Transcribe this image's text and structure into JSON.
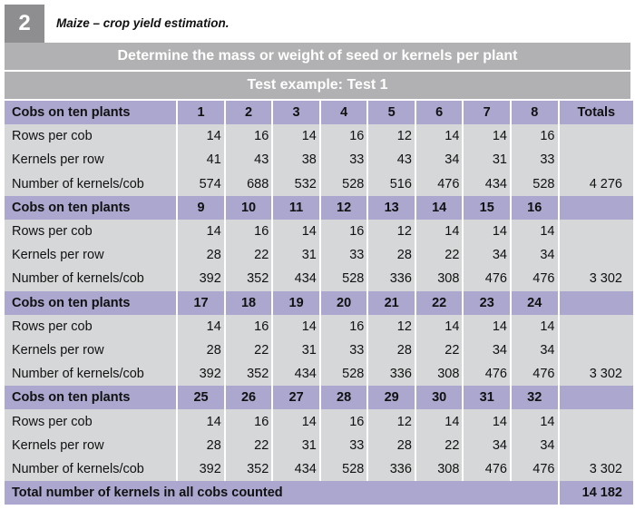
{
  "header": {
    "badge_number": "2",
    "caption": "Maize – crop yield estimation."
  },
  "title_band": "Determine the mass or weight of seed or kernels per plant",
  "subtitle_band": "Test example: Test 1",
  "colors": {
    "header_row": "#aba7cf",
    "body_row": "#d6d7d8",
    "band": "#b1b1b3",
    "badge": "#8e8e90"
  },
  "table": {
    "totals_header": "Totals",
    "groups": [
      {
        "header_label": "Cobs on ten plants",
        "plants": [
          "1",
          "2",
          "3",
          "4",
          "5",
          "6",
          "7",
          "8"
        ],
        "show_totals_label": true,
        "rows": [
          {
            "label": "Rows per cob",
            "values": [
              "14",
              "16",
              "14",
              "16",
              "12",
              "14",
              "14",
              "16"
            ],
            "total": ""
          },
          {
            "label": "Kernels per row",
            "values": [
              "41",
              "43",
              "38",
              "33",
              "43",
              "34",
              "31",
              "33"
            ],
            "total": ""
          },
          {
            "label": "Number of kernels/cob",
            "values": [
              "574",
              "688",
              "532",
              "528",
              "516",
              "476",
              "434",
              "528"
            ],
            "total": "4 276"
          }
        ]
      },
      {
        "header_label": "Cobs on ten plants",
        "plants": [
          "9",
          "10",
          "11",
          "12",
          "13",
          "14",
          "15",
          "16"
        ],
        "show_totals_label": false,
        "rows": [
          {
            "label": "Rows per cob",
            "values": [
              "14",
              "16",
              "14",
              "16",
              "12",
              "14",
              "14",
              "14"
            ],
            "total": ""
          },
          {
            "label": "Kernels per row",
            "values": [
              "28",
              "22",
              "31",
              "33",
              "28",
              "22",
              "34",
              "34"
            ],
            "total": ""
          },
          {
            "label": "Number of kernels/cob",
            "values": [
              "392",
              "352",
              "434",
              "528",
              "336",
              "308",
              "476",
              "476"
            ],
            "total": "3 302"
          }
        ]
      },
      {
        "header_label": "Cobs on ten plants",
        "plants": [
          "17",
          "18",
          "19",
          "20",
          "21",
          "22",
          "23",
          "24"
        ],
        "show_totals_label": false,
        "rows": [
          {
            "label": "Rows per cob",
            "values": [
              "14",
              "16",
              "14",
              "16",
              "12",
              "14",
              "14",
              "14"
            ],
            "total": ""
          },
          {
            "label": "Kernels per row",
            "values": [
              "28",
              "22",
              "31",
              "33",
              "28",
              "22",
              "34",
              "34"
            ],
            "total": ""
          },
          {
            "label": "Number of kernels/cob",
            "values": [
              "392",
              "352",
              "434",
              "528",
              "336",
              "308",
              "476",
              "476"
            ],
            "total": "3 302"
          }
        ]
      },
      {
        "header_label": "Cobs on ten plants",
        "plants": [
          "25",
          "26",
          "27",
          "28",
          "29",
          "30",
          "31",
          "32"
        ],
        "show_totals_label": false,
        "rows": [
          {
            "label": "Rows per cob",
            "values": [
              "14",
              "16",
              "14",
              "16",
              "12",
              "14",
              "14",
              "14"
            ],
            "total": ""
          },
          {
            "label": "Kernels per row",
            "values": [
              "28",
              "22",
              "31",
              "33",
              "28",
              "22",
              "34",
              "34"
            ],
            "total": ""
          },
          {
            "label": "Number of kernels/cob",
            "values": [
              "392",
              "352",
              "434",
              "528",
              "336",
              "308",
              "476",
              "476"
            ],
            "total": "3 302"
          }
        ]
      }
    ],
    "grand_total_label": "Total number of kernels in all cobs counted",
    "grand_total_value": "14 182"
  }
}
